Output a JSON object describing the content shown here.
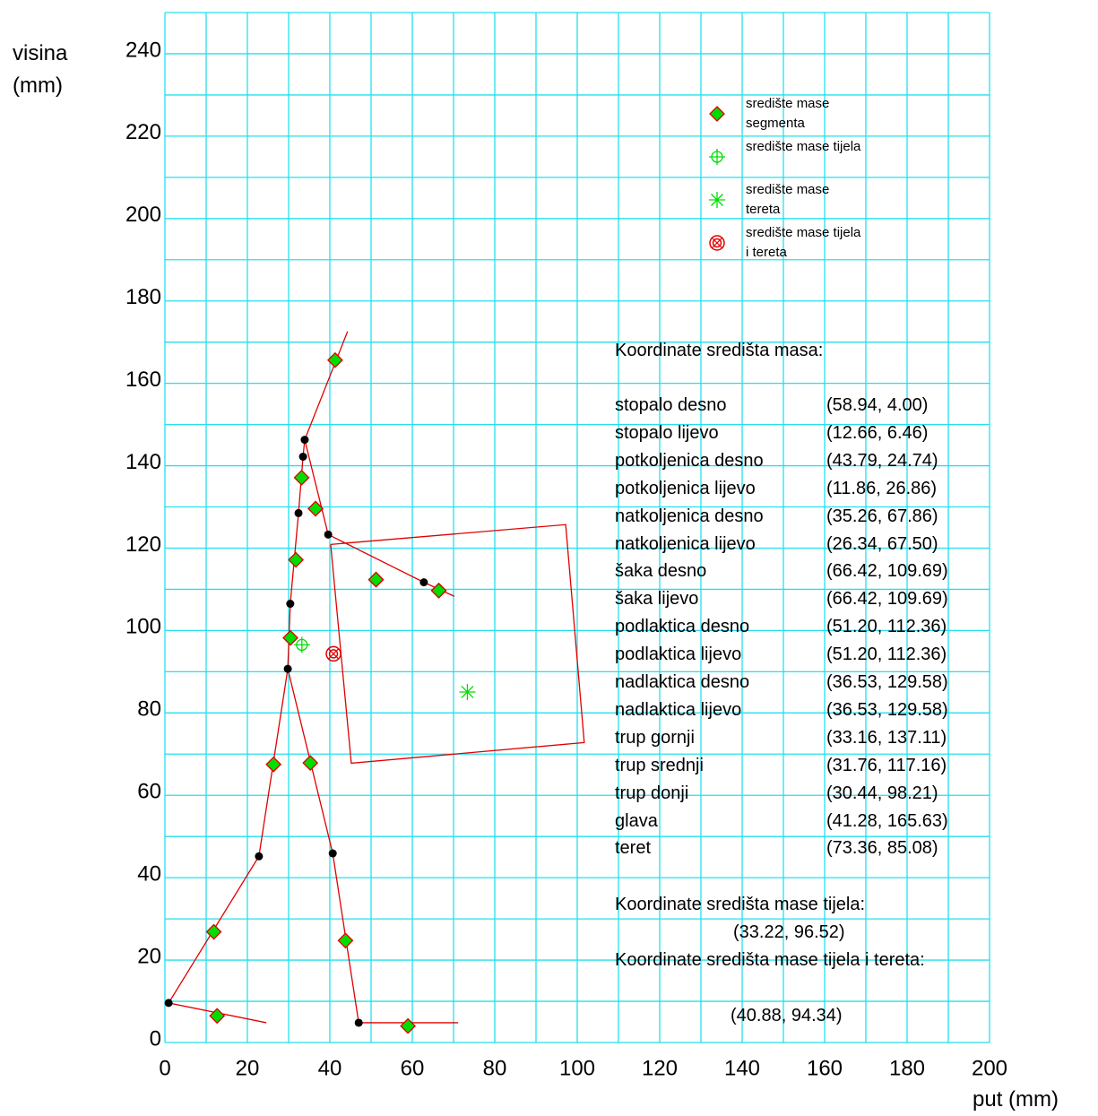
{
  "chart_data": {
    "type": "scatter",
    "xlabel": "put (mm)",
    "ylabel": "visina (mm)",
    "xlim": [
      0,
      200
    ],
    "ylim": [
      0,
      250
    ],
    "xticks": [
      0,
      20,
      40,
      60,
      80,
      100,
      120,
      140,
      160,
      180,
      200
    ],
    "yticks": [
      0,
      20,
      40,
      60,
      80,
      100,
      120,
      140,
      160,
      180,
      200,
      220,
      240
    ],
    "xgrid": [
      0,
      10,
      20,
      30,
      40,
      50,
      60,
      70,
      80,
      90,
      100,
      110,
      120,
      130,
      140,
      150,
      160,
      170,
      180,
      190,
      200
    ],
    "ygrid": [
      0,
      10,
      20,
      30,
      40,
      50,
      60,
      70,
      80,
      90,
      100,
      110,
      120,
      130,
      140,
      150,
      160,
      170,
      180,
      190,
      200,
      210,
      220,
      230,
      240,
      250
    ],
    "grid_color": "#22e0ee",
    "table_title": "Koordinate središta masa:",
    "body_title": "Koordinate središta mase tijela:",
    "combined_title": "Koordinate središta mase tijela i tereta:",
    "series": [
      {
        "name": "središte mase segmenta",
        "marker": "diamond",
        "color": "#00dd00",
        "edge": "#e00000",
        "points": [
          {
            "name": "stopalo desno",
            "x": 58.94,
            "y": 4.0,
            "label": "(58.94, 4.00)"
          },
          {
            "name": "stopalo lijevo",
            "x": 12.66,
            "y": 6.46,
            "label": "(12.66, 6.46)"
          },
          {
            "name": "potkoljenica desno",
            "x": 43.79,
            "y": 24.74,
            "label": "(43.79, 24.74)"
          },
          {
            "name": "potkoljenica lijevo",
            "x": 11.86,
            "y": 26.86,
            "label": "(11.86, 26.86)"
          },
          {
            "name": "natkoljenica desno",
            "x": 35.26,
            "y": 67.86,
            "label": "(35.26, 67.86)"
          },
          {
            "name": "natkoljenica lijevo",
            "x": 26.34,
            "y": 67.5,
            "label": "(26.34, 67.50)"
          },
          {
            "name": "šaka desno",
            "x": 66.42,
            "y": 109.69,
            "label": "(66.42, 109.69)"
          },
          {
            "name": "šaka lijevo",
            "x": 66.42,
            "y": 109.69,
            "label": "(66.42, 109.69)"
          },
          {
            "name": "podlaktica desno",
            "x": 51.2,
            "y": 112.36,
            "label": "(51.20, 112.36)"
          },
          {
            "name": "podlaktica lijevo",
            "x": 51.2,
            "y": 112.36,
            "label": "(51.20, 112.36)"
          },
          {
            "name": "nadlaktica desno",
            "x": 36.53,
            "y": 129.58,
            "label": "(36.53, 129.58)"
          },
          {
            "name": "nadlaktica lijevo",
            "x": 36.53,
            "y": 129.58,
            "label": "(36.53, 129.58)"
          },
          {
            "name": "trup gornji",
            "x": 33.16,
            "y": 137.11,
            "label": "(33.16, 137.11)"
          },
          {
            "name": "trup srednji",
            "x": 31.76,
            "y": 117.16,
            "label": "(31.76, 117.16)"
          },
          {
            "name": "trup donji",
            "x": 30.44,
            "y": 98.21,
            "label": "(30.44, 98.21)"
          },
          {
            "name": "glava",
            "x": 41.28,
            "y": 165.63,
            "label": "(41.28, 165.63)"
          }
        ]
      },
      {
        "name": "središte mase tijela",
        "marker": "crosshair",
        "color": "#00dd00",
        "points": [
          {
            "x": 33.22,
            "y": 96.52,
            "label": "(33.22, 96.52)"
          }
        ]
      },
      {
        "name": "središte mase tereta",
        "marker": "star",
        "color": "#00dd00",
        "points": [
          {
            "name": "teret",
            "x": 73.36,
            "y": 85.08,
            "label": "(73.36, 85.08)"
          }
        ]
      },
      {
        "name": "središte mase tijela i tereta",
        "marker": "target",
        "color": "#e00000",
        "points": [
          {
            "x": 40.88,
            "y": 94.34,
            "label": "(40.88, 94.34)"
          }
        ]
      }
    ],
    "line_color": "#e00000",
    "lines": [
      {
        "x": [
          24.6,
          0.9,
          22.8,
          29.8,
          40.7,
          47.0,
          71.1
        ],
        "y": [
          4.8,
          9.6,
          45.2,
          90.7,
          45.9,
          4.8,
          4.8
        ]
      },
      {
        "x": [
          29.8,
          30.4,
          32.4,
          33.5,
          33.9,
          44.3
        ],
        "y": [
          90.7,
          106.5,
          128.5,
          142.2,
          146.3,
          172.6
        ]
      },
      {
        "x": [
          33.9,
          39.6,
          62.8,
          70.2
        ],
        "y": [
          146.3,
          123.3,
          111.7,
          108.3
        ]
      },
      {
        "x": [
          40.2,
          97.2,
          101.7,
          45.2,
          40.2
        ],
        "y": [
          120.9,
          125.7,
          72.8,
          67.8,
          120.9
        ]
      }
    ],
    "joint_color": "#000000",
    "joints": {
      "x": [
        0.9,
        22.8,
        29.8,
        40.7,
        47.0,
        30.4,
        32.4,
        33.5,
        33.9,
        39.6,
        62.8
      ],
      "y": [
        9.6,
        45.2,
        90.7,
        45.9,
        4.8,
        106.5,
        128.5,
        142.2,
        146.3,
        123.3,
        111.7
      ]
    }
  }
}
